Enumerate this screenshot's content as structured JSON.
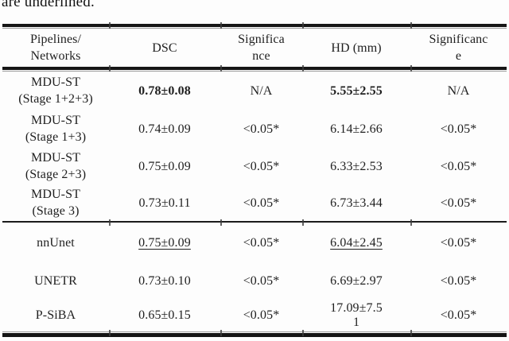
{
  "caption_fragment": "are underlined.",
  "table": {
    "header": [
      "Pipelines/\nNetworks",
      "DSC",
      "Significa\nnce",
      "HD (mm)",
      "Significanc\ne"
    ],
    "rows": [
      {
        "pipeline": "MDU-ST\n(Stage 1+2+3)",
        "dsc": "0.78±0.08",
        "dsc_sig": "N/A",
        "hd": "5.55±2.55",
        "hd_sig": "N/A"
      },
      {
        "pipeline": "MDU-ST\n(Stage 1+3)",
        "dsc": "0.74±0.09",
        "dsc_sig": "<0.05*",
        "hd": "6.14±2.66",
        "hd_sig": "<0.05*"
      },
      {
        "pipeline": "MDU-ST\n(Stage 2+3)",
        "dsc": "0.75±0.09",
        "dsc_sig": "<0.05*",
        "hd": "6.33±2.53",
        "hd_sig": "<0.05*"
      },
      {
        "pipeline": "MDU-ST\n(Stage 3)",
        "dsc": "0.73±0.11",
        "dsc_sig": "<0.05*",
        "hd": "6.73±3.44",
        "hd_sig": "<0.05*"
      },
      {
        "pipeline": "nnUnet",
        "dsc": "0.75±0.09",
        "dsc_sig": "<0.05*",
        "hd": "6.04±2.45",
        "hd_sig": "<0.05*"
      },
      {
        "pipeline": "UNETR",
        "dsc": "0.73±0.10",
        "dsc_sig": "<0.05*",
        "hd": "6.69±2.97",
        "hd_sig": "<0.05*"
      },
      {
        "pipeline": "P-SiBA",
        "dsc": "0.65±0.15",
        "dsc_sig": "<0.05*",
        "hd": "17.09±7.5\n1",
        "hd_sig": "<0.05*"
      }
    ],
    "notes": {
      "bold_cells": "best results (row MDU-ST Stage 1+2+3: DSC, HD)",
      "underlined_cells": "second-best results (row nnUnet: DSC, HD)"
    },
    "colors": {
      "text": "#1f1f1f",
      "rule": "#161616",
      "background": "#fdfdfd"
    }
  }
}
